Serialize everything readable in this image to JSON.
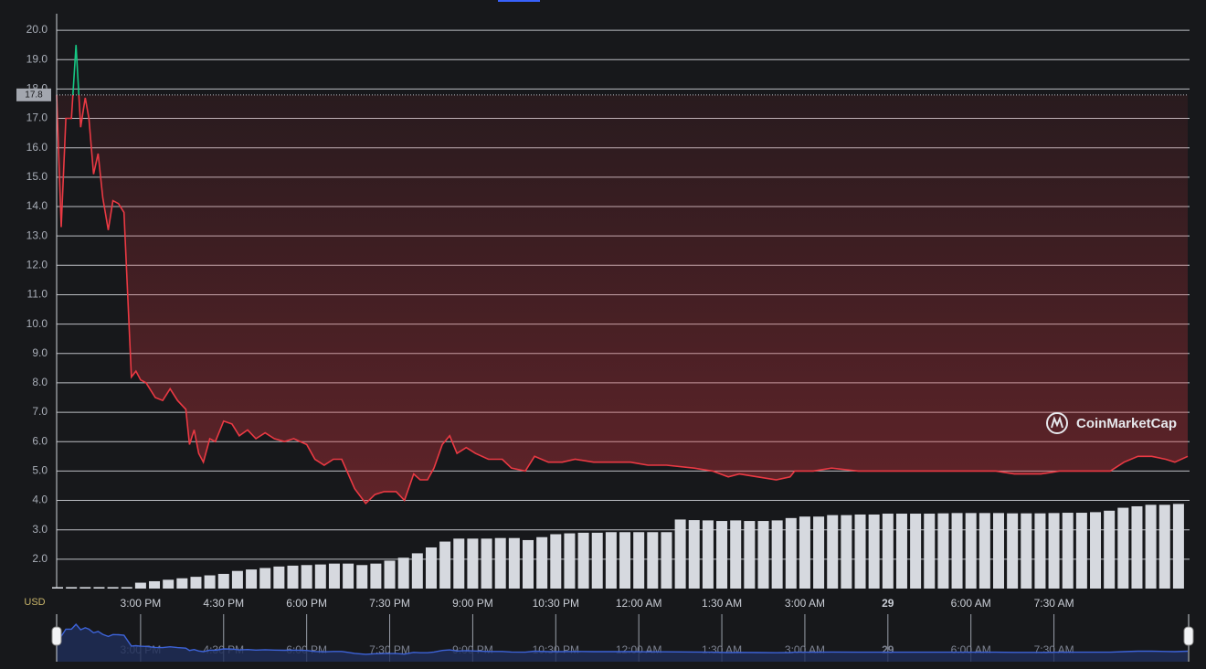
{
  "chart_data": {
    "type": "line",
    "currency": "USD",
    "watermark": "CoinMarketCap",
    "reference_value": 17.8,
    "grid": true,
    "xlim": [
      809,
      2035
    ],
    "xticks": [
      {
        "value": 900,
        "label": "3:00 PM"
      },
      {
        "value": 990,
        "label": "4:30 PM"
      },
      {
        "value": 1080,
        "label": "6:00 PM"
      },
      {
        "value": 1170,
        "label": "7:30 PM"
      },
      {
        "value": 1260,
        "label": "9:00 PM"
      },
      {
        "value": 1350,
        "label": "10:30 PM"
      },
      {
        "value": 1440,
        "label": "12:00 AM"
      },
      {
        "value": 1530,
        "label": "1:30 AM"
      },
      {
        "value": 1620,
        "label": "3:00 AM"
      },
      {
        "value": 1710,
        "label": "29"
      },
      {
        "value": 1800,
        "label": "6:00 AM"
      },
      {
        "value": 1890,
        "label": "7:30 AM"
      }
    ],
    "ylim": [
      1.0,
      20.5
    ],
    "yticks": [
      {
        "value": 2,
        "label": "2.0"
      },
      {
        "value": 3,
        "label": "3.0"
      },
      {
        "value": 4,
        "label": "4.0"
      },
      {
        "value": 5,
        "label": "5.0"
      },
      {
        "value": 6,
        "label": "6.0"
      },
      {
        "value": 7,
        "label": "7.0"
      },
      {
        "value": 8,
        "label": "8.0"
      },
      {
        "value": 9,
        "label": "9.0"
      },
      {
        "value": 10,
        "label": "10.0"
      },
      {
        "value": 11,
        "label": "11.0"
      },
      {
        "value": 12,
        "label": "12.0"
      },
      {
        "value": 13,
        "label": "13.0"
      },
      {
        "value": 14,
        "label": "14.0"
      },
      {
        "value": 15,
        "label": "15.0"
      },
      {
        "value": 16,
        "label": "16.0"
      },
      {
        "value": 17,
        "label": "17.0"
      },
      {
        "value": 18,
        "label": "18.0"
      },
      {
        "value": 19,
        "label": "19.0"
      },
      {
        "value": 20,
        "label": "20.0"
      }
    ],
    "series": [
      {
        "color": "#ea3943",
        "above_color": "#16c784",
        "x": [
          809,
          814,
          819,
          825,
          830,
          835,
          840,
          844,
          849,
          854,
          859,
          865,
          870,
          876,
          882,
          890,
          895,
          900,
          906,
          916,
          924,
          932,
          940,
          949,
          953,
          958,
          963,
          968,
          975,
          981,
          990,
          999,
          1007,
          1016,
          1025,
          1035,
          1045,
          1056,
          1066,
          1080,
          1089,
          1099,
          1109,
          1118,
          1125,
          1132,
          1144,
          1154,
          1164,
          1177,
          1186,
          1196,
          1203,
          1211,
          1218,
          1227,
          1235,
          1243,
          1253,
          1263,
          1277,
          1292,
          1302,
          1317,
          1327,
          1342,
          1357,
          1371,
          1391,
          1411,
          1431,
          1450,
          1470,
          1500,
          1520,
          1537,
          1549,
          1569,
          1589,
          1604,
          1609,
          1629,
          1649,
          1678,
          1708,
          1738,
          1768,
          1797,
          1827,
          1847,
          1876,
          1896,
          1926,
          1951,
          1966,
          1981,
          1996,
          2011,
          2021,
          2035
        ],
        "values": [
          17.8,
          13.3,
          17.0,
          17.0,
          19.5,
          16.7,
          17.7,
          17.0,
          15.1,
          15.8,
          14.3,
          13.2,
          14.2,
          14.1,
          13.8,
          8.2,
          8.4,
          8.1,
          8.0,
          7.5,
          7.4,
          7.8,
          7.4,
          7.1,
          5.9,
          6.4,
          5.6,
          5.3,
          6.1,
          6.0,
          6.7,
          6.6,
          6.2,
          6.4,
          6.1,
          6.3,
          6.1,
          6.0,
          6.1,
          5.9,
          5.4,
          5.2,
          5.4,
          5.4,
          4.9,
          4.4,
          3.9,
          4.2,
          4.3,
          4.3,
          4.0,
          4.9,
          4.7,
          4.7,
          5.1,
          5.9,
          6.2,
          5.6,
          5.8,
          5.6,
          5.4,
          5.4,
          5.1,
          5.0,
          5.5,
          5.3,
          5.3,
          5.4,
          5.3,
          5.3,
          5.3,
          5.2,
          5.2,
          5.1,
          5.0,
          4.8,
          4.9,
          4.8,
          4.7,
          4.8,
          5.0,
          5.0,
          5.1,
          5.0,
          5.0,
          5.0,
          5.0,
          5.0,
          5.0,
          4.9,
          4.9,
          5.0,
          5.0,
          5.0,
          5.3,
          5.5,
          5.5,
          5.4,
          5.3,
          5.5
        ]
      }
    ],
    "volume": {
      "color": "#d6d9df",
      "x": [
        810,
        825,
        840,
        855,
        870,
        885,
        900,
        915,
        930,
        945,
        960,
        975,
        990,
        1005,
        1020,
        1035,
        1050,
        1065,
        1080,
        1095,
        1110,
        1125,
        1140,
        1155,
        1170,
        1185,
        1200,
        1215,
        1230,
        1245,
        1260,
        1275,
        1290,
        1305,
        1320,
        1335,
        1350,
        1365,
        1380,
        1395,
        1410,
        1425,
        1440,
        1455,
        1470,
        1485,
        1500,
        1515,
        1530,
        1545,
        1560,
        1575,
        1590,
        1605,
        1620,
        1635,
        1650,
        1665,
        1680,
        1695,
        1710,
        1725,
        1740,
        1755,
        1770,
        1785,
        1800,
        1815,
        1830,
        1845,
        1860,
        1875,
        1890,
        1905,
        1920,
        1935,
        1950,
        1965,
        1980,
        1995,
        2010,
        2025
      ],
      "values": [
        1.05,
        1.05,
        1.05,
        1.05,
        1.05,
        1.05,
        1.2,
        1.25,
        1.3,
        1.35,
        1.4,
        1.45,
        1.5,
        1.6,
        1.65,
        1.7,
        1.75,
        1.78,
        1.8,
        1.82,
        1.85,
        1.85,
        1.8,
        1.85,
        1.95,
        2.05,
        2.2,
        2.4,
        2.6,
        2.7,
        2.7,
        2.7,
        2.72,
        2.72,
        2.65,
        2.75,
        2.85,
        2.88,
        2.9,
        2.9,
        2.92,
        2.92,
        2.92,
        2.92,
        2.92,
        3.35,
        3.33,
        3.32,
        3.3,
        3.32,
        3.3,
        3.3,
        3.32,
        3.4,
        3.45,
        3.45,
        3.5,
        3.5,
        3.52,
        3.52,
        3.55,
        3.55,
        3.55,
        3.55,
        3.56,
        3.57,
        3.57,
        3.57,
        3.57,
        3.56,
        3.56,
        3.56,
        3.57,
        3.58,
        3.58,
        3.6,
        3.65,
        3.75,
        3.8,
        3.85,
        3.85,
        3.88
      ]
    }
  }
}
